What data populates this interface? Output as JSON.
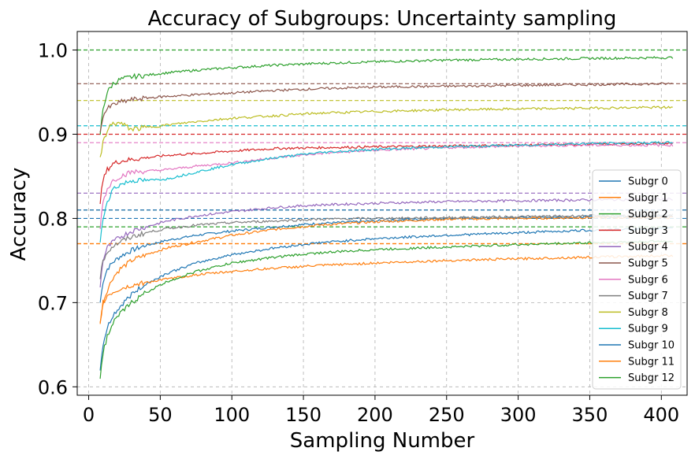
{
  "chart_data": {
    "type": "line",
    "title": "Accuracy of Subgroups: Uncertainty sampling",
    "xlabel": "Sampling Number",
    "ylabel": "Accuracy",
    "xlim": [
      -8,
      418
    ],
    "ylim": [
      0.59,
      1.022
    ],
    "xticks": [
      0,
      50,
      100,
      150,
      200,
      250,
      300,
      350,
      400
    ],
    "yticks": [
      0.6,
      0.7,
      0.8,
      0.9,
      1.0
    ],
    "ytick_labels": [
      "0.6",
      "0.7",
      "0.8",
      "0.9",
      "1.0"
    ],
    "grid": true,
    "legend_position": "lower-right",
    "series": [
      {
        "name": "Subgr 0",
        "color": "#1f77b4",
        "ref": 0.8,
        "x": [
          8,
          10,
          13,
          17,
          22,
          30,
          40,
          55,
          75,
          100,
          130,
          160,
          200,
          250,
          300,
          350,
          408
        ],
        "y": [
          0.7,
          0.725,
          0.74,
          0.748,
          0.755,
          0.762,
          0.768,
          0.774,
          0.78,
          0.785,
          0.79,
          0.794,
          0.797,
          0.8,
          0.801,
          0.802,
          0.803
        ]
      },
      {
        "name": "Subgr 1",
        "color": "#ff7f0e",
        "ref": 0.77,
        "x": [
          8,
          10,
          13,
          17,
          22,
          30,
          40,
          55,
          75,
          100,
          130,
          160,
          200,
          250,
          300,
          350,
          408
        ],
        "y": [
          0.675,
          0.7,
          0.715,
          0.73,
          0.74,
          0.75,
          0.757,
          0.765,
          0.772,
          0.78,
          0.787,
          0.792,
          0.796,
          0.799,
          0.8,
          0.801,
          0.801
        ]
      },
      {
        "name": "Subgr 2",
        "color": "#2ca02c",
        "ref": 1.0,
        "x": [
          8,
          10,
          13,
          17,
          22,
          30,
          40,
          55,
          75,
          100,
          130,
          160,
          200,
          250,
          300,
          350,
          408
        ],
        "y": [
          0.9,
          0.93,
          0.95,
          0.96,
          0.965,
          0.968,
          0.97,
          0.973,
          0.976,
          0.979,
          0.982,
          0.984,
          0.986,
          0.988,
          0.989,
          0.99,
          0.991
        ]
      },
      {
        "name": "Subgr 3",
        "color": "#d62728",
        "ref": 0.9,
        "x": [
          8,
          10,
          13,
          17,
          22,
          30,
          40,
          55,
          75,
          100,
          130,
          160,
          200,
          250,
          300,
          350,
          408
        ],
        "y": [
          0.82,
          0.845,
          0.858,
          0.865,
          0.868,
          0.87,
          0.872,
          0.875,
          0.877,
          0.88,
          0.883,
          0.884,
          0.885,
          0.886,
          0.887,
          0.888,
          0.889
        ]
      },
      {
        "name": "Subgr 4",
        "color": "#9467bd",
        "ref": 0.83,
        "x": [
          8,
          10,
          13,
          17,
          22,
          30,
          40,
          55,
          75,
          100,
          130,
          160,
          200,
          250,
          300,
          350,
          408
        ],
        "y": [
          0.72,
          0.75,
          0.765,
          0.772,
          0.778,
          0.785,
          0.79,
          0.797,
          0.803,
          0.808,
          0.813,
          0.816,
          0.818,
          0.82,
          0.821,
          0.822,
          0.823
        ]
      },
      {
        "name": "Subgr 5",
        "color": "#8c564b",
        "ref": 0.96,
        "x": [
          8,
          10,
          13,
          17,
          22,
          30,
          40,
          55,
          75,
          100,
          130,
          160,
          200,
          250,
          300,
          350,
          408
        ],
        "y": [
          0.9,
          0.922,
          0.93,
          0.935,
          0.938,
          0.941,
          0.943,
          0.945,
          0.947,
          0.949,
          0.952,
          0.954,
          0.956,
          0.957,
          0.958,
          0.959,
          0.96
        ]
      },
      {
        "name": "Subgr 6",
        "color": "#e377c2",
        "ref": 0.89,
        "x": [
          8,
          10,
          13,
          17,
          22,
          30,
          40,
          55,
          75,
          100,
          130,
          160,
          200,
          250,
          300,
          350,
          408
        ],
        "y": [
          0.79,
          0.82,
          0.835,
          0.845,
          0.85,
          0.855,
          0.856,
          0.858,
          0.862,
          0.866,
          0.872,
          0.877,
          0.881,
          0.884,
          0.886,
          0.887,
          0.887
        ]
      },
      {
        "name": "Subgr 7",
        "color": "#7f7f7f",
        "ref": 0.81,
        "x": [
          8,
          10,
          13,
          17,
          22,
          30,
          40,
          55,
          75,
          100,
          130,
          160,
          200,
          250,
          300,
          350,
          408
        ],
        "y": [
          0.73,
          0.75,
          0.76,
          0.767,
          0.772,
          0.778,
          0.783,
          0.788,
          0.792,
          0.795,
          0.797,
          0.799,
          0.8,
          0.801,
          0.802,
          0.803,
          0.804
        ]
      },
      {
        "name": "Subgr 8",
        "color": "#bcbd22",
        "ref": 0.94,
        "x": [
          8,
          10,
          13,
          17,
          22,
          30,
          40,
          55,
          75,
          100,
          130,
          160,
          200,
          250,
          300,
          350,
          408
        ],
        "y": [
          0.87,
          0.89,
          0.905,
          0.913,
          0.913,
          0.906,
          0.908,
          0.911,
          0.915,
          0.919,
          0.922,
          0.925,
          0.927,
          0.929,
          0.93,
          0.931,
          0.932
        ]
      },
      {
        "name": "Subgr 9",
        "color": "#17becf",
        "ref": 0.91,
        "x": [
          8,
          10,
          13,
          17,
          22,
          30,
          40,
          55,
          75,
          100,
          130,
          160,
          200,
          250,
          300,
          350,
          408
        ],
        "y": [
          0.77,
          0.8,
          0.82,
          0.835,
          0.84,
          0.845,
          0.845,
          0.847,
          0.855,
          0.864,
          0.872,
          0.878,
          0.882,
          0.885,
          0.887,
          0.889,
          0.89
        ]
      },
      {
        "name": "Subgr 10",
        "color": "#1f77b4",
        "ref": 0.81,
        "x": [
          8,
          10,
          13,
          17,
          22,
          30,
          40,
          55,
          75,
          100,
          130,
          160,
          200,
          250,
          300,
          350,
          408
        ],
        "y": [
          0.62,
          0.65,
          0.67,
          0.685,
          0.695,
          0.71,
          0.722,
          0.735,
          0.747,
          0.757,
          0.765,
          0.771,
          0.776,
          0.78,
          0.783,
          0.786,
          0.788
        ]
      },
      {
        "name": "Subgr 11",
        "color": "#ff7f0e",
        "ref": 0.77,
        "x": [
          8,
          10,
          13,
          17,
          22,
          30,
          40,
          55,
          75,
          100,
          130,
          160,
          200,
          250,
          300,
          350,
          408
        ],
        "y": [
          0.675,
          0.7,
          0.708,
          0.712,
          0.716,
          0.72,
          0.724,
          0.728,
          0.733,
          0.737,
          0.741,
          0.744,
          0.747,
          0.75,
          0.752,
          0.754,
          0.756
        ]
      },
      {
        "name": "Subgr 12",
        "color": "#2ca02c",
        "ref": 0.79,
        "x": [
          8,
          10,
          13,
          17,
          22,
          30,
          40,
          55,
          75,
          100,
          130,
          160,
          200,
          250,
          300,
          350,
          408
        ],
        "y": [
          0.612,
          0.64,
          0.66,
          0.675,
          0.687,
          0.7,
          0.712,
          0.725,
          0.737,
          0.747,
          0.754,
          0.759,
          0.763,
          0.766,
          0.769,
          0.771,
          0.773
        ]
      }
    ]
  }
}
